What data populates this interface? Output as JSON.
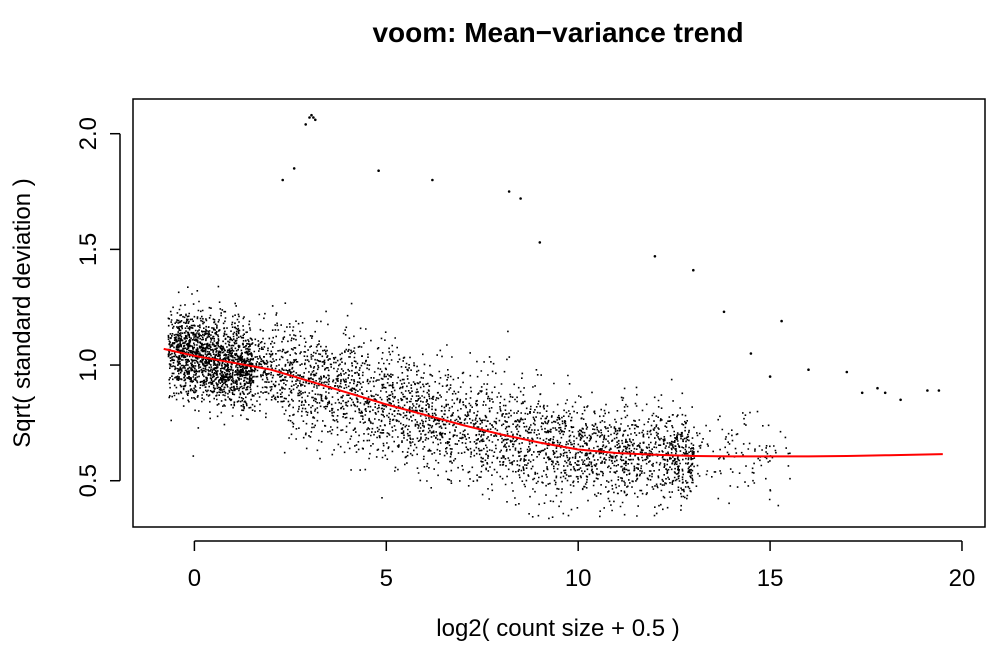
{
  "chart_data": {
    "type": "scatter",
    "title": "voom: Mean−variance trend",
    "xlabel": "log2( count size + 0.5 )",
    "ylabel": "Sqrt( standard deviation )",
    "xlim": [
      -1.6,
      20.6
    ],
    "ylim": [
      0.3,
      2.15
    ],
    "xticks": [
      0,
      5,
      10,
      15,
      20
    ],
    "yticks": [
      0.5,
      1.0,
      1.5,
      2.0
    ],
    "xtick_labels": [
      "0",
      "5",
      "10",
      "15",
      "20"
    ],
    "ytick_labels": [
      "0.5",
      "1.0",
      "1.5",
      "2.0"
    ],
    "grid": false,
    "point_color": "#000000",
    "trend_color": "#ff0000",
    "trend": {
      "name": "",
      "x": [
        -0.8,
        0,
        1,
        2,
        3,
        4,
        5,
        6,
        7,
        8,
        9,
        10,
        11,
        12,
        13,
        14,
        15,
        16,
        17,
        18,
        19.5
      ],
      "y": [
        1.07,
        1.04,
        1.01,
        0.98,
        0.93,
        0.88,
        0.83,
        0.785,
        0.74,
        0.7,
        0.665,
        0.635,
        0.62,
        0.612,
        0.607,
        0.605,
        0.605,
        0.605,
        0.607,
        0.61,
        0.615
      ]
    },
    "points_summary": {
      "x_range": [
        -0.8,
        19.5
      ],
      "y_range": [
        0.33,
        2.08
      ],
      "n_points": 11000
    },
    "outliers": {
      "x": [
        2.9,
        3.0,
        3.05,
        3.1,
        3.15,
        2.6,
        2.3,
        4.8,
        6.2,
        8.2,
        8.5,
        9.0,
        12.0,
        13.0,
        13.8,
        14.5,
        15.0,
        15.3,
        16.0,
        17.0,
        17.4,
        17.8,
        18.0,
        18.4,
        19.1,
        19.4
      ],
      "y": [
        2.04,
        2.07,
        2.08,
        2.07,
        2.06,
        1.85,
        1.8,
        1.84,
        1.8,
        1.75,
        1.72,
        1.53,
        1.47,
        1.41,
        1.23,
        1.05,
        0.95,
        1.19,
        0.98,
        0.97,
        0.88,
        0.9,
        0.88,
        0.85,
        0.89,
        0.89
      ]
    }
  }
}
